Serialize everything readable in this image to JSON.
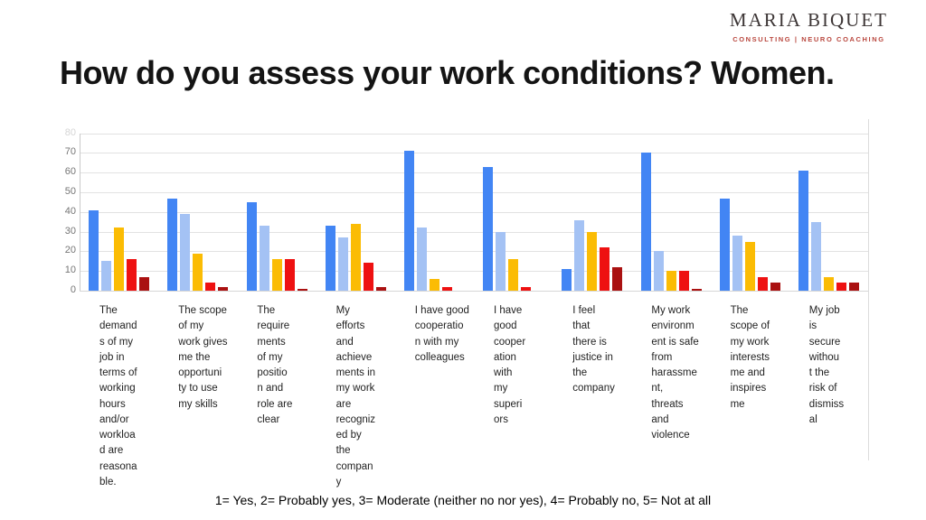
{
  "logo": {
    "name": "MARIA BIQUET",
    "tagline": "CONSULTING | NEURO COACHING",
    "tagline_color": "#b9473e"
  },
  "title": "How do you assess your work conditions? Women.",
  "footnote": "1= Yes, 2= Probably yes, 3= Moderate (neither no nor yes), 4= Probably no, 5= Not at all",
  "chart_data": {
    "type": "bar",
    "title": "",
    "xlabel": "",
    "ylabel": "",
    "ylim": [
      0,
      80
    ],
    "yticks": [
      0,
      10,
      20,
      30,
      40,
      50,
      60,
      70,
      80
    ],
    "grid": true,
    "legend_position": "none",
    "categories": [
      "The demands of my job in terms of working hours and/or workload are reasonable.",
      "The scope of my work gives me the opportunity to use my skills",
      "The requirements of my position and role are clear",
      "My efforts and achievements in my work are recognized by the company",
      "I have good cooperation with my colleagues",
      "I have good cooperation with my superiors",
      "I feel that there is justice in the company",
      "My work environment is safe from harassment, threats and violence",
      "The scope of my work interests me and inspires me",
      "My job is secure without the risk of dismissal"
    ],
    "categories_wrapped": [
      "The\ndemand\ns of my\njob in\nterms of\nworking\nhours\nand/or\nworkloa\nd are\nreasona\nble.",
      "The scope\nof my\nwork gives\nme the\nopportuni\nty to use\nmy skills",
      "The\nrequire\nments\nof my\npositio\nn and\nrole are\nclear",
      "My\nefforts\nand\nachieve\nments in\nmy work\nare\nrecogniz\ned by\nthe\ncompan\ny",
      "I have good\ncooperatio\nn with my\ncolleagues",
      "I have\ngood\ncooper\nation\nwith\nmy\nsuperi\nors",
      "I feel\nthat\nthere is\njustice in\nthe\ncompany",
      "My work\nenvironm\nent is safe\nfrom\nharassme\nnt,\nthreats\nand\nviolence",
      "The\nscope of\nmy work\ninterests\nme and\ninspires\nme",
      "My job\nis\nsecure\nwithou\nt the\nrisk of\ndismiss\nal"
    ],
    "series": [
      {
        "name": "1 = Yes",
        "color": "#4285F4",
        "values": [
          41,
          47,
          45,
          33,
          71,
          63,
          11,
          70,
          47,
          61
        ]
      },
      {
        "name": "2 = Probably yes",
        "color": "#A4C2F4",
        "values": [
          15,
          39,
          33,
          27,
          32,
          30,
          36,
          20,
          28,
          35
        ]
      },
      {
        "name": "3 = Moderate (neither no nor yes)",
        "color": "#FBBC04",
        "values": [
          32,
          19,
          16,
          34,
          6,
          16,
          30,
          10,
          25,
          7
        ]
      },
      {
        "name": "4 = Probably no",
        "color": "#EE1111",
        "values": [
          16,
          4,
          16,
          14,
          2,
          2,
          22,
          10,
          7,
          4
        ]
      },
      {
        "name": "5 = Not at all",
        "color": "#AA1111",
        "values": [
          7,
          2,
          1,
          2,
          0,
          0,
          12,
          1,
          4,
          4
        ]
      }
    ]
  }
}
